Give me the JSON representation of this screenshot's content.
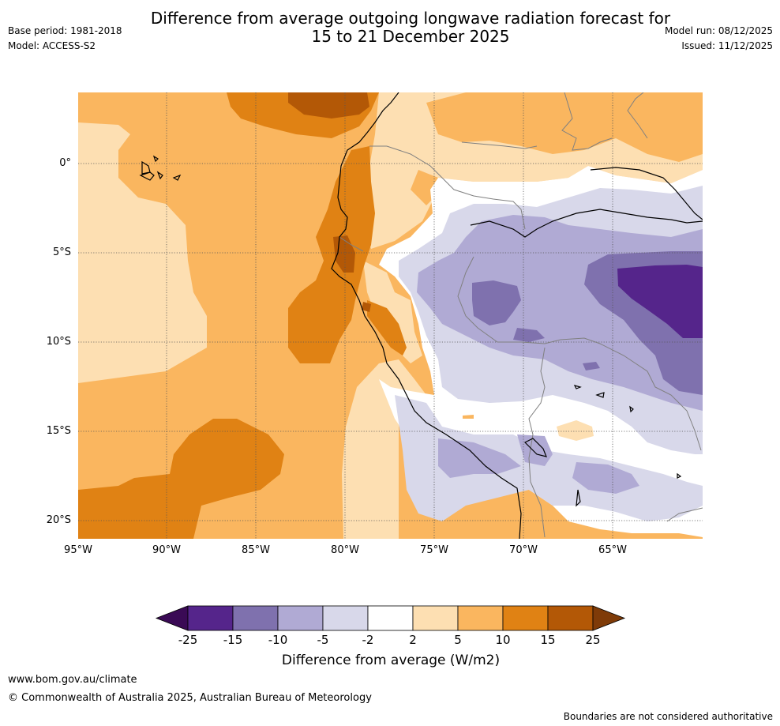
{
  "header": {
    "title_line1": "Difference from average outgoing longwave radiation forecast for",
    "title_line2": "15 to 21 December 2025",
    "base_period": "Base period: 1981-2018",
    "model": "Model: ACCESS-S2",
    "model_run": "Model run: 08/12/2025",
    "issued": "Issued: 11/12/2025"
  },
  "map": {
    "longitude_labels": [
      "95°W",
      "90°W",
      "85°W",
      "80°W",
      "75°W",
      "70°W",
      "65°W"
    ],
    "latitude_labels": [
      "0°",
      "5°S",
      "10°S",
      "15°S",
      "20°S"
    ]
  },
  "legend": {
    "title": "Difference from average (W/m2)",
    "tick_labels": [
      "-25",
      "-15",
      "-10",
      "-5",
      "-2",
      "2",
      "5",
      "10",
      "15",
      "25"
    ],
    "colors": {
      "below_-25": "#3a0a55",
      "-25_to_-15": "#55258b",
      "-15_to_-10": "#7f71ae",
      "-10_to_-5": "#b0aad4",
      "-5_to_-2": "#d8d8ea",
      "-2_to_2": "#ffffff",
      "2_to_5": "#fddfb2",
      "5_to_10": "#fab65f",
      "10_to_15": "#e08214",
      "15_to_25": "#b35806",
      "above_25": "#7f3b08"
    }
  },
  "footer": {
    "website": "www.bom.gov.au/climate",
    "copyright": "© Commonwealth of Australia 2025, Australian Bureau of Meteorology",
    "disclaimer": "Boundaries are not considered authoritative"
  }
}
